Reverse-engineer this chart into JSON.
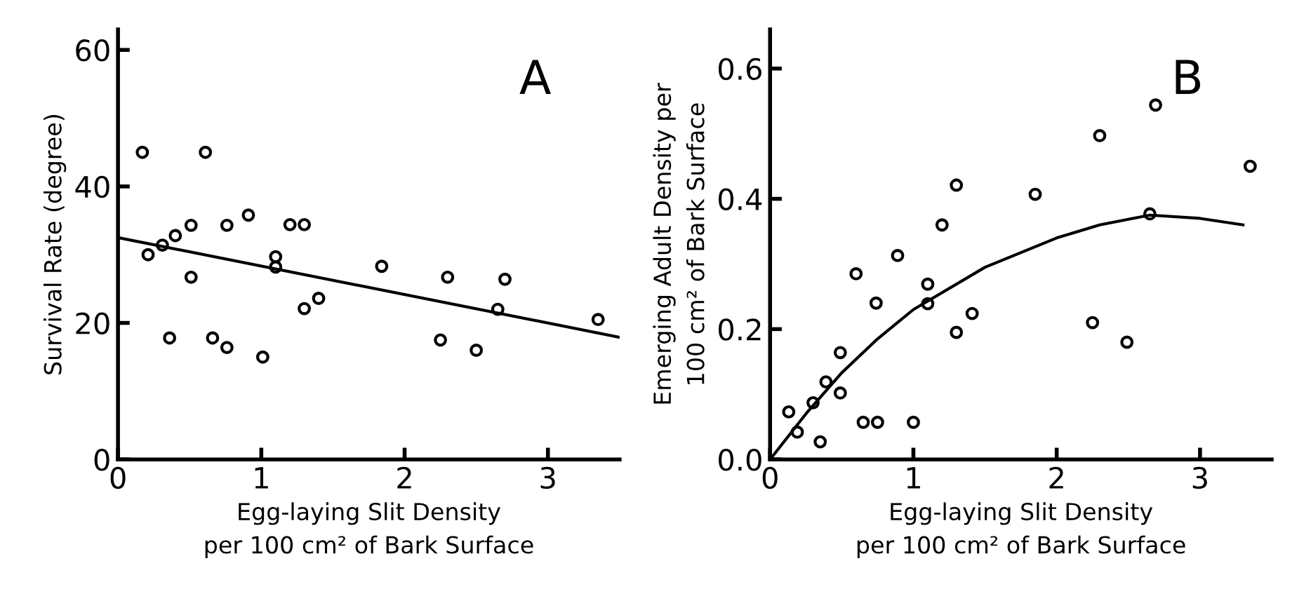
{
  "chart_data": [
    {
      "type": "scatter",
      "annotations": [
        "A"
      ],
      "xlabel": "Egg-laying Slit Density\nper 100 cm² of Bark Surface",
      "ylabel": "Survival Rate (degree)",
      "xlim": [
        0,
        3.5
      ],
      "ylim": [
        0,
        63
      ],
      "xticks": [
        0,
        1,
        2,
        3
      ],
      "yticks": [
        0,
        20,
        40,
        60
      ],
      "grid": false,
      "legend": false,
      "series": [
        {
          "marker": "circle",
          "color": "#000000",
          "x": [
            0.17,
            0.21,
            0.31,
            0.4,
            0.51,
            0.51,
            0.36,
            0.61,
            0.66,
            0.76,
            0.76,
            0.91,
            1.01,
            1.1,
            1.1,
            1.2,
            1.3,
            1.3,
            1.4,
            1.84,
            2.3,
            2.25,
            2.5,
            2.65,
            2.7,
            3.35
          ],
          "values": [
            45,
            30,
            31.4,
            32.8,
            34.3,
            26.7,
            17.8,
            45,
            17.8,
            34.3,
            16.4,
            35.8,
            15,
            29.7,
            28.2,
            34.4,
            34.4,
            22.1,
            23.6,
            28.3,
            26.7,
            17.5,
            16,
            22,
            26.4,
            20.5
          ]
        },
        {
          "type": "line",
          "marker": "none",
          "line_style": "solid",
          "color": "#000000",
          "x": [
            0,
            3.5
          ],
          "values": [
            32.5,
            17.9
          ]
        }
      ]
    },
    {
      "type": "scatter",
      "annotations": [
        "B"
      ],
      "xlabel": "Egg-laying Slit Density\nper 100 cm² of Bark Surface",
      "ylabel": "Emerging Adult Density per\n100 cm² of Bark Surface",
      "xlim": [
        0,
        3.5
      ],
      "ylim": [
        0,
        0.66
      ],
      "xticks": [
        0,
        1,
        2,
        3
      ],
      "yticks": [
        {
          "value": 0,
          "label": "0.0"
        },
        {
          "value": 0.2,
          "label": "0.2"
        },
        {
          "value": 0.4,
          "label": "0.4"
        },
        {
          "value": 0.6,
          "label": "0.6"
        }
      ],
      "grid": false,
      "legend": false,
      "series": [
        {
          "marker": "circle",
          "color": "#000000",
          "x": [
            0.13,
            0.19,
            0.3,
            0.35,
            0.39,
            0.49,
            0.49,
            0.6,
            0.65,
            0.75,
            0.74,
            0.89,
            1.0,
            1.1,
            1.1,
            1.2,
            1.3,
            1.3,
            1.41,
            1.85,
            2.25,
            2.3,
            2.49,
            2.65,
            2.69,
            3.35
          ],
          "values": [
            0.073,
            0.042,
            0.087,
            0.027,
            0.119,
            0.164,
            0.102,
            0.285,
            0.057,
            0.057,
            0.24,
            0.313,
            0.057,
            0.269,
            0.239,
            0.36,
            0.421,
            0.195,
            0.224,
            0.407,
            0.21,
            0.497,
            0.18,
            0.377,
            0.544,
            0.45
          ]
        },
        {
          "type": "line",
          "marker": "none",
          "line_style": "solid",
          "color": "#000000",
          "x": [
            0,
            0.25,
            0.5,
            0.75,
            1.0,
            1.5,
            2.0,
            2.3,
            2.65,
            3.0,
            3.3
          ],
          "values": [
            0,
            0.07,
            0.133,
            0.185,
            0.23,
            0.295,
            0.34,
            0.36,
            0.375,
            0.37,
            0.36
          ]
        }
      ]
    }
  ]
}
